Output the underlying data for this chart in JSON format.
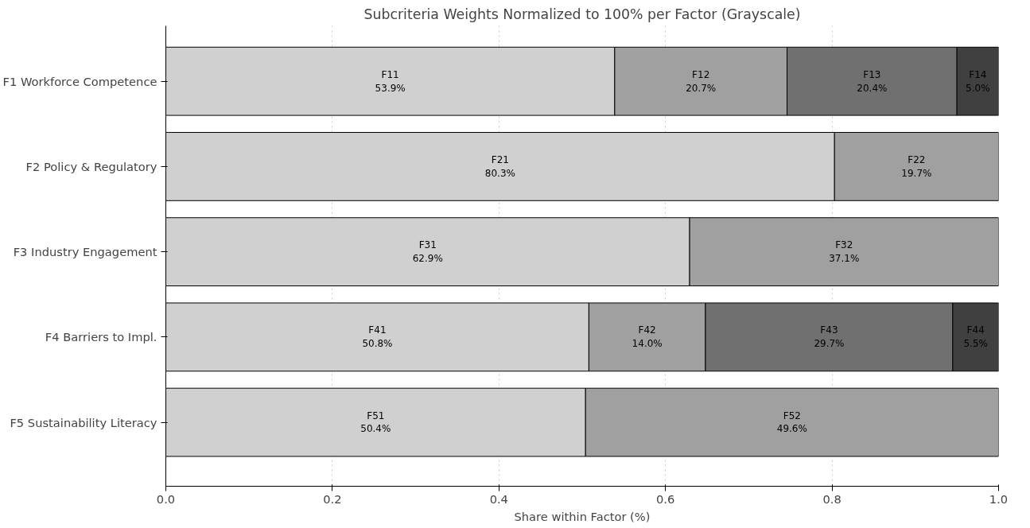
{
  "chart_data": {
    "type": "bar",
    "orientation": "horizontal",
    "stacked": true,
    "title": "Subcriteria Weights Normalized to 100% per Factor (Grayscale)",
    "xlabel": "Share within Factor (%)",
    "categories": [
      "F1 Workforce Competence",
      "F2 Policy & Regulatory",
      "F3 Industry Engagement",
      "F4 Barriers to Impl.",
      "F5 Sustainability Literacy"
    ],
    "series": [
      {
        "color": "#d0d0d0",
        "values": [
          0.539,
          0.803,
          0.629,
          0.508,
          0.504
        ],
        "value_labels": [
          "F11\n53.9%",
          "F21\n80.3%",
          "F31\n62.9%",
          "F41\n50.8%",
          "F51\n50.4%"
        ]
      },
      {
        "color": "#a0a0a0",
        "values": [
          0.207,
          0.197,
          0.371,
          0.14,
          0.496
        ],
        "value_labels": [
          "F12\n20.7%",
          "F22\n19.7%",
          "F32\n37.1%",
          "F42\n14.0%",
          "F52\n49.6%"
        ]
      },
      {
        "color": "#707070",
        "values": [
          0.204,
          null,
          null,
          0.297,
          null
        ],
        "value_labels": [
          "F13\n20.4%",
          null,
          null,
          "F43\n29.7%",
          null
        ]
      },
      {
        "color": "#404040",
        "values": [
          0.05,
          null,
          null,
          0.055,
          null
        ],
        "value_labels": [
          "F14\n5.0%",
          null,
          null,
          "F44\n5.5%",
          null
        ]
      }
    ],
    "xlim": [
      0.0,
      1.0
    ],
    "xticks": [
      {
        "value": 0.0,
        "label": "0.0"
      },
      {
        "value": 0.2,
        "label": "0.2"
      },
      {
        "value": 0.4,
        "label": "0.4"
      },
      {
        "value": 0.6,
        "label": "0.6"
      },
      {
        "value": 0.8,
        "label": "0.8"
      },
      {
        "value": 1.0,
        "label": "1.0"
      }
    ],
    "grid": "x"
  }
}
